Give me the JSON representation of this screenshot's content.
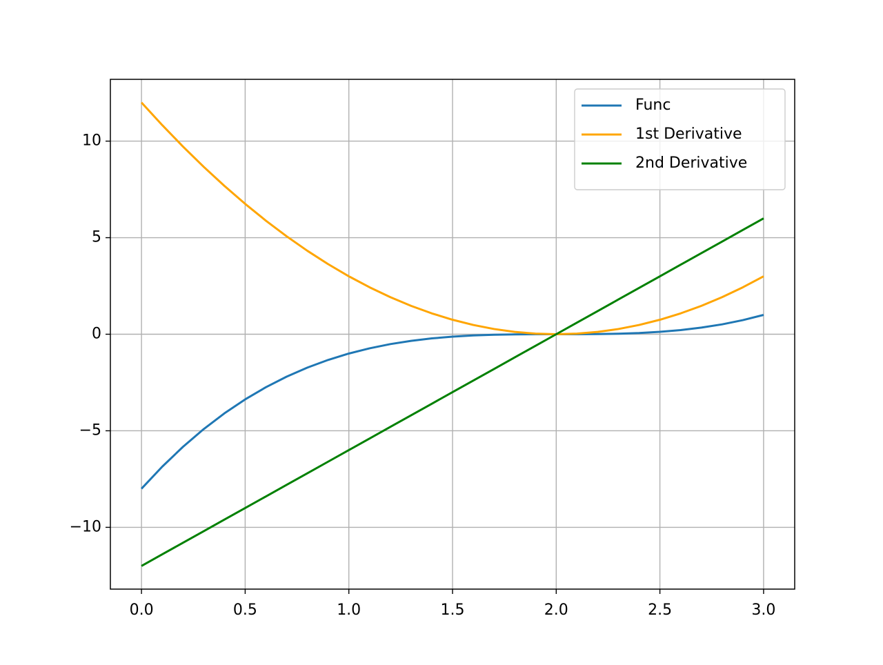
{
  "chart_data": {
    "type": "line",
    "x": [
      0,
      0.1,
      0.2,
      0.3,
      0.4,
      0.5,
      0.6,
      0.7,
      0.8,
      0.9,
      1,
      1.1,
      1.2,
      1.3,
      1.4,
      1.5,
      1.6,
      1.7,
      1.8,
      1.9,
      2,
      2.1,
      2.2,
      2.3,
      2.4,
      2.5,
      2.6,
      2.7,
      2.8,
      2.9,
      3
    ],
    "series": [
      {
        "name": "Func",
        "color": "#1f77b4",
        "values": [
          -8,
          -6.859,
          -5.832,
          -4.913,
          -4.096,
          -3.375,
          -2.744,
          -2.197,
          -1.728,
          -1.331,
          -1,
          -0.729,
          -0.512,
          -0.343,
          -0.216,
          -0.125,
          -0.064,
          -0.027,
          -0.008,
          -0.001,
          0,
          0.001,
          0.008,
          0.027,
          0.064,
          0.125,
          0.216,
          0.343,
          0.512,
          0.729,
          1
        ]
      },
      {
        "name": "1st Derivative",
        "color": "orange",
        "values": [
          12,
          10.83,
          9.72,
          8.67,
          7.68,
          6.75,
          5.88,
          5.07,
          4.32,
          3.63,
          3,
          2.43,
          1.92,
          1.47,
          1.08,
          0.75,
          0.48,
          0.27,
          0.12,
          0.03,
          0,
          0.03,
          0.12,
          0.27,
          0.48,
          0.75,
          1.08,
          1.47,
          1.92,
          2.43,
          3
        ]
      },
      {
        "name": "2nd Derivative",
        "color": "green",
        "values": [
          -12,
          -11.4,
          -10.8,
          -10.2,
          -9.6,
          -9,
          -8.4,
          -7.8,
          -7.2,
          -6.6,
          -6,
          -5.4,
          -4.8,
          -4.2,
          -3.6,
          -3,
          -2.4,
          -1.8,
          -1.2,
          -0.6,
          0,
          0.6,
          1.2,
          1.8,
          2.4,
          3,
          3.6,
          4.2,
          4.8,
          5.4,
          6
        ]
      }
    ],
    "xlim": [
      -0.15,
      3.15
    ],
    "ylim": [
      -13.2,
      13.2
    ],
    "xticks": [
      {
        "value": 0,
        "label": "0.0"
      },
      0.5,
      {
        "value": 1,
        "label": "1.0"
      },
      1.5,
      {
        "value": 2,
        "label": "2.0"
      },
      2.5,
      {
        "value": 3,
        "label": "3.0"
      }
    ],
    "yticks": [
      {
        "value": -10,
        "label": "−10"
      },
      {
        "value": -5,
        "label": "−5"
      },
      0,
      5,
      10
    ],
    "grid": true,
    "legend": "upper right"
  }
}
